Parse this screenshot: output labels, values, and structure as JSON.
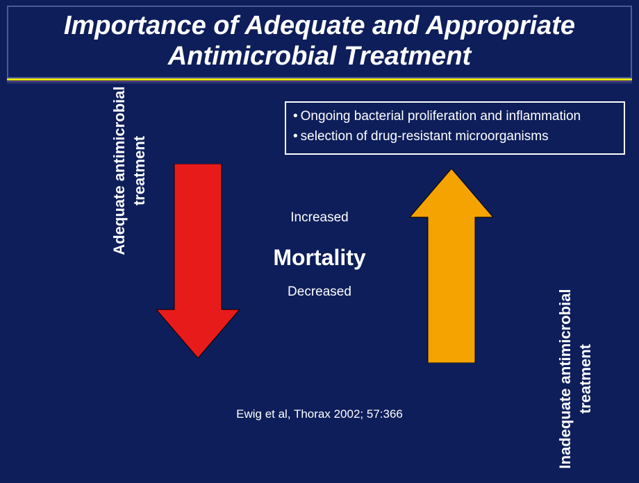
{
  "title": "Importance of Adequate and Appropriate Antimicrobial Treatment",
  "rules": {
    "yellow": "#e6e600",
    "thin1": "#8a4aa0",
    "thin2": "#3a4a8a"
  },
  "callout": {
    "line1": "Ongoing bacterial proliferation and inflammation",
    "line2": "selection of drug-resistant microorganisms"
  },
  "left_label_l1": "Adequate antimicrobial",
  "left_label_l2": "treatment",
  "right_label_l1": "Inadequate antimicrobial",
  "right_label_l2": "treatment",
  "center": {
    "increased": "Increased",
    "mortality": "Mortality",
    "decreased": "Decreased"
  },
  "arrows": {
    "down_fill": "#e81b1b",
    "down_stroke": "#000000",
    "up_fill": "#f5a300",
    "up_stroke": "#000000",
    "shaft_width": 68,
    "head_width": 120,
    "total_height_down": 280,
    "total_height_up": 280,
    "head_height": 70
  },
  "citation": "Ewig et al, Thorax 2002; 57:366",
  "background": "#0e1e5a"
}
